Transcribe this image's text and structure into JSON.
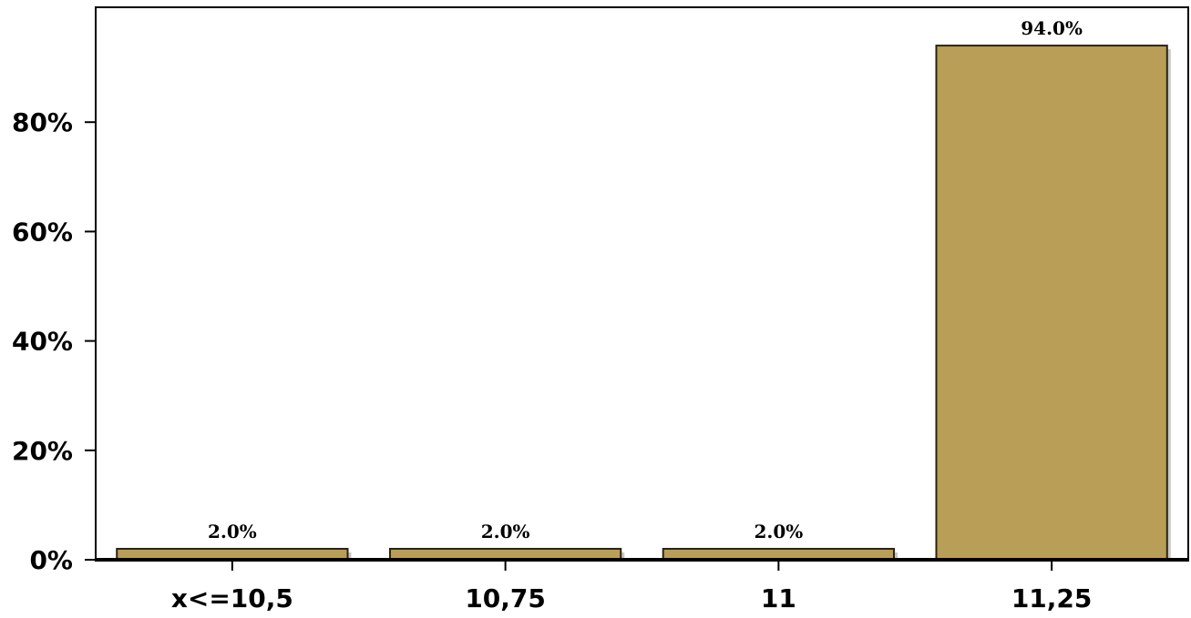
{
  "chart_data": {
    "type": "bar",
    "categories": [
      "x<=10,5",
      "10,75",
      "11",
      "11,25"
    ],
    "values": [
      2.0,
      2.0,
      2.0,
      94.0
    ],
    "value_labels": [
      "2.0%",
      "2.0%",
      "2.0%",
      "94.0%"
    ],
    "yticks": [
      0,
      20,
      40,
      60,
      80
    ],
    "ytick_labels": [
      "0%",
      "20%",
      "40%",
      "60%",
      "80%"
    ],
    "ylim": [
      0,
      101
    ],
    "title": "",
    "xlabel": "",
    "ylabel": "",
    "grid": false,
    "colors": {
      "bar_fill": "#b99e58",
      "bar_stroke": "#2b2410",
      "bar_shadow": "#c8c8c8",
      "axis": "#000000"
    }
  }
}
